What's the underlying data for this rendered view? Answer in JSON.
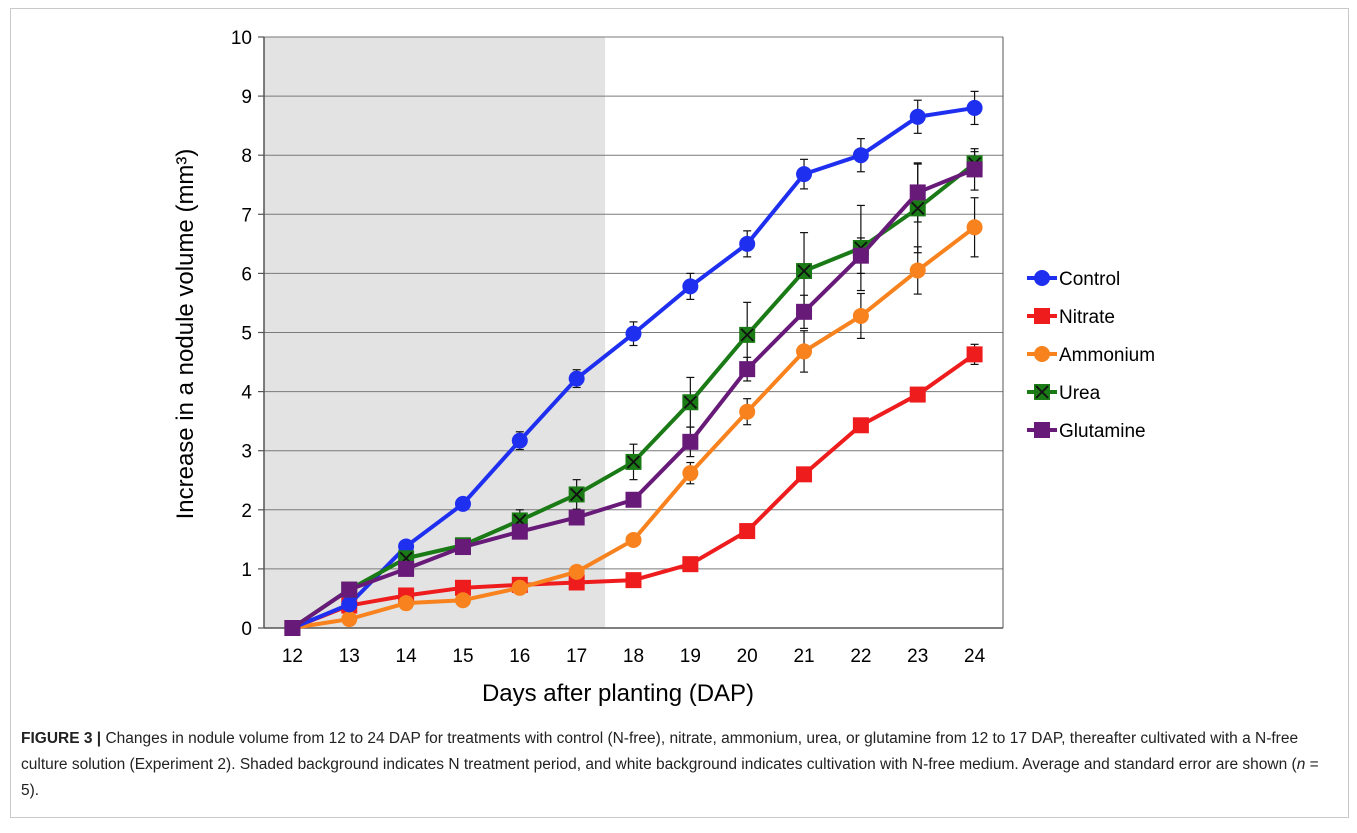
{
  "chart_data": {
    "type": "line",
    "xlabel": "Days after planting (DAP)",
    "ylabel": "Increase in a nodule volume (mm³)",
    "x": [
      12,
      13,
      14,
      15,
      16,
      17,
      18,
      19,
      20,
      21,
      22,
      23,
      24
    ],
    "ylim": [
      0,
      10
    ],
    "yticks": [
      0,
      1,
      2,
      3,
      4,
      5,
      6,
      7,
      8,
      9,
      10
    ],
    "grid": "horizontal",
    "legend_position": "right",
    "shaded_region": {
      "x_from": 12,
      "x_to": 17,
      "color": "#e3e3e3"
    },
    "series": [
      {
        "name": "Control",
        "color": "#1f2ff0",
        "marker": "circle",
        "values": [
          0,
          0.4,
          1.38,
          2.1,
          3.17,
          4.22,
          4.98,
          5.78,
          6.5,
          7.68,
          8.0,
          8.65,
          8.8
        ],
        "errors": [
          0,
          0,
          0.08,
          0.08,
          0.15,
          0.15,
          0.2,
          0.22,
          0.22,
          0.25,
          0.28,
          0.28,
          0.28
        ]
      },
      {
        "name": "Nitrate",
        "color": "#ee1c1c",
        "marker": "square",
        "values": [
          0,
          0.38,
          0.55,
          0.68,
          0.73,
          0.77,
          0.81,
          1.08,
          1.64,
          2.6,
          3.43,
          3.95,
          4.63
        ],
        "errors": [
          0,
          0,
          0,
          0,
          0,
          0,
          0,
          0,
          0,
          0,
          0,
          0,
          0.17
        ]
      },
      {
        "name": "Ammonium",
        "color": "#f7821e",
        "marker": "circle",
        "values": [
          0,
          0.15,
          0.42,
          0.47,
          0.68,
          0.95,
          1.49,
          2.62,
          3.66,
          4.68,
          5.28,
          6.05,
          6.78
        ],
        "errors": [
          0,
          0,
          0,
          0,
          0,
          0,
          0,
          0.18,
          0.22,
          0.35,
          0.38,
          0.4,
          0.5
        ]
      },
      {
        "name": "Urea",
        "color": "#1a7a16",
        "marker": "square-x",
        "values": [
          0,
          0.65,
          1.18,
          1.4,
          1.82,
          2.26,
          2.81,
          3.82,
          4.96,
          6.04,
          6.43,
          7.1,
          7.86
        ],
        "errors": [
          0,
          0,
          0,
          0.08,
          0.18,
          0.25,
          0.3,
          0.42,
          0.55,
          0.65,
          0.72,
          0.75,
          0.2
        ]
      },
      {
        "name": "Glutamine",
        "color": "#681a79",
        "marker": "square",
        "values": [
          0,
          0.65,
          1.0,
          1.37,
          1.63,
          1.87,
          2.17,
          3.15,
          4.38,
          5.35,
          6.3,
          7.37,
          7.76
        ],
        "errors": [
          0,
          0,
          0,
          0.08,
          0,
          0,
          0,
          0.25,
          0.2,
          0.28,
          0.3,
          0.5,
          0.35
        ]
      }
    ]
  },
  "caption": {
    "label": "FIGURE 3 |",
    "text": " Changes in nodule volume from 12 to 24 DAP for treatments with control (N-free), nitrate, ammonium, urea, or glutamine from 12 to 17 DAP, thereafter cultivated with a N-free culture solution (Experiment 2). Shaded background indicates N treatment period, and white background indicates cultivation with N-free medium. Average and standard error are shown (",
    "n_var": "n",
    "n_rest": " = 5)."
  }
}
